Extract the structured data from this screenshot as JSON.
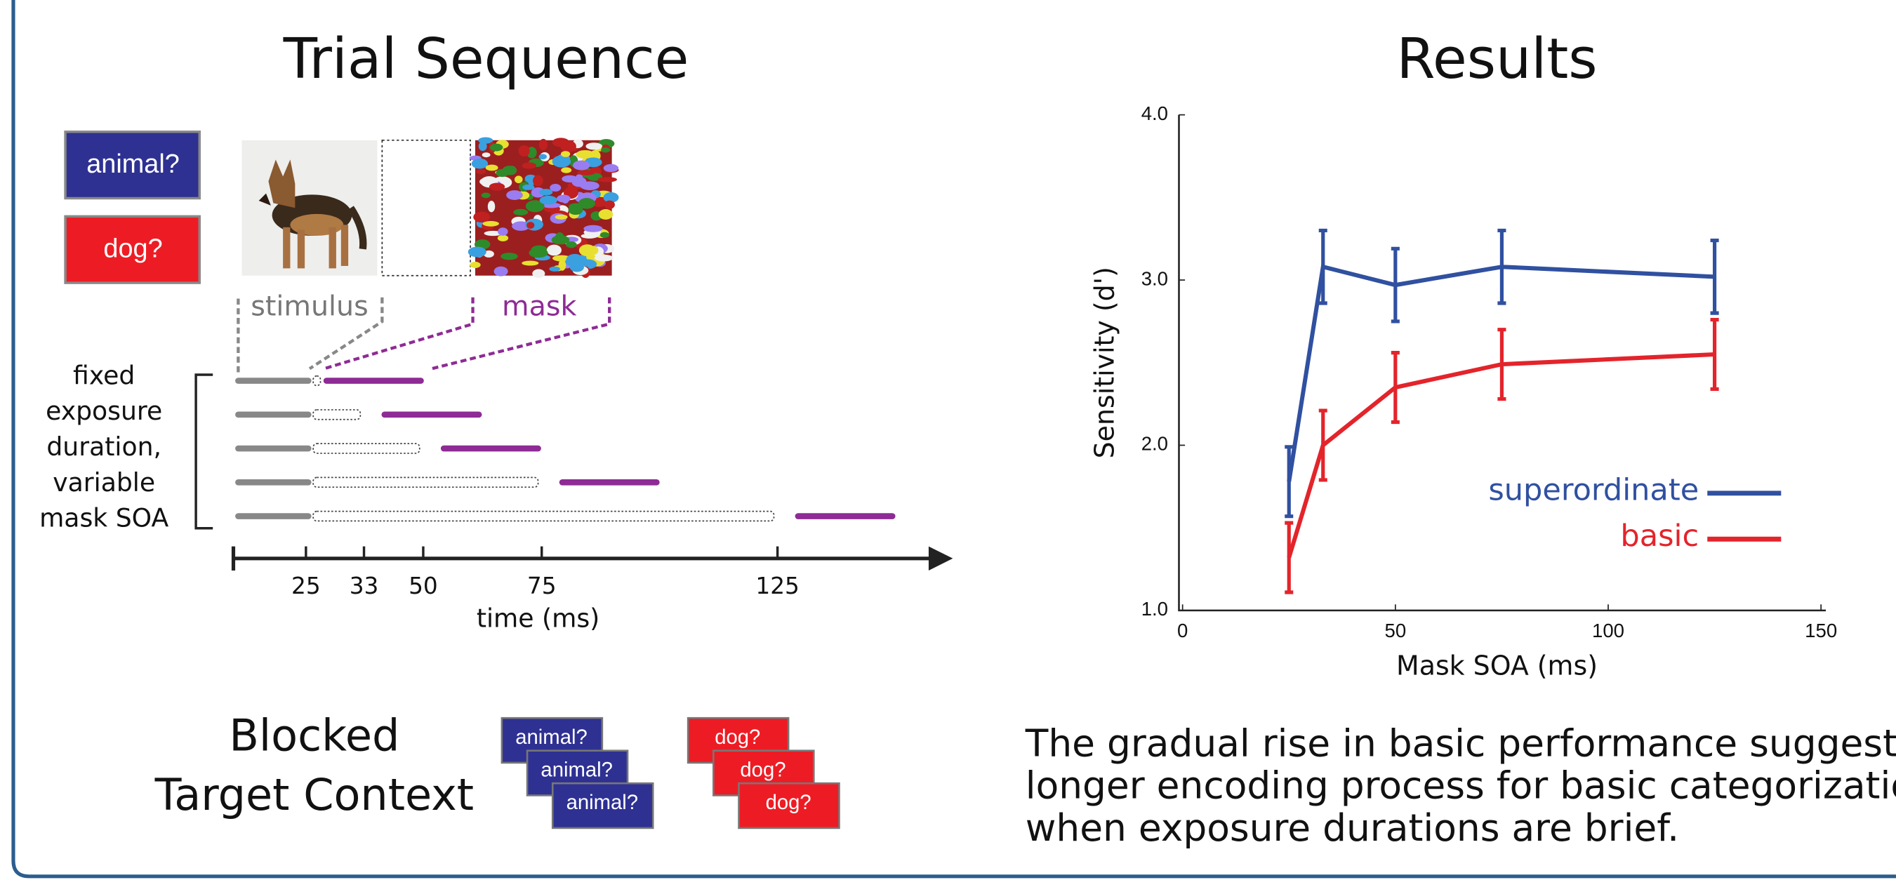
{
  "trial_sequence": {
    "title": "Trial Sequence",
    "cues": [
      "animal?",
      "dog?"
    ],
    "stimulus_label": "stimulus",
    "mask_label": "mask",
    "bracket_label": [
      "fixed",
      "exposure",
      "duration,",
      "variable",
      "mask SOA"
    ],
    "time_ticks": [
      25,
      33,
      50,
      75,
      125
    ],
    "time_label": "time (ms)"
  },
  "blocked_context": {
    "title": [
      "Blocked",
      "Target Context"
    ],
    "animal_cards": [
      "animal?",
      "animal?",
      "animal?"
    ],
    "dog_cards": [
      "dog?",
      "dog?",
      "dog?"
    ]
  },
  "results_title": "Results",
  "chart_data": {
    "type": "line",
    "x_label": "Mask SOA (ms)",
    "y_label": "Sensitivity (d')",
    "x": [
      25,
      33,
      50,
      75,
      125
    ],
    "series": [
      {
        "name": "superordinate",
        "color": "#3050a0",
        "values": [
          1.78,
          3.08,
          2.97,
          3.08,
          3.02
        ],
        "errors": [
          0.21,
          0.22,
          0.22,
          0.22,
          0.22
        ]
      },
      {
        "name": "basic",
        "color": "#e3242b",
        "values": [
          1.32,
          2.0,
          2.35,
          2.49,
          2.55
        ],
        "errors": [
          0.21,
          0.21,
          0.21,
          0.21,
          0.21
        ]
      }
    ],
    "xlim": [
      0,
      150
    ],
    "xticks": [
      0,
      50,
      100,
      150
    ],
    "ylim": [
      1,
      4
    ],
    "yticks": [
      {
        "value": 1,
        "label": "1.0"
      },
      {
        "value": 2,
        "label": "2.0"
      },
      {
        "value": 3,
        "label": "3.0"
      },
      {
        "value": 4,
        "label": "4.0"
      }
    ],
    "legend": "lower right"
  },
  "caption": [
    "The gradual rise in basic performance suggests",
    "longer encoding process for basic categorizatio",
    "when exposure durations are brief."
  ]
}
